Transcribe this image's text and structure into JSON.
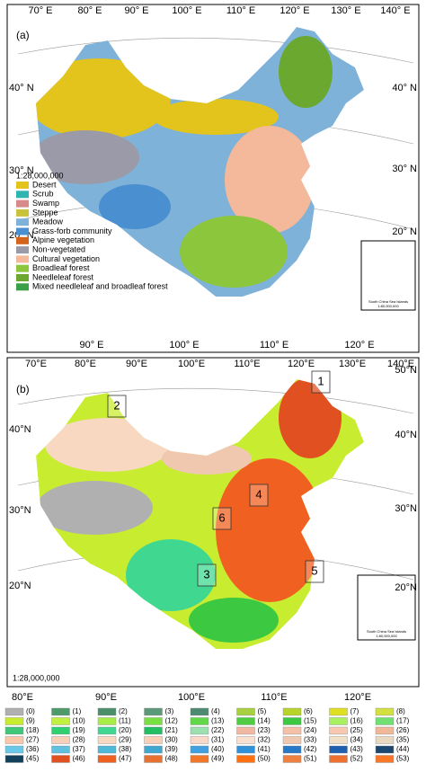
{
  "panel_a": {
    "label": "(a)",
    "top_ticks": [
      "70° E",
      "80° E",
      "90° E",
      "100° E",
      "110° E",
      "120° E",
      "130° E",
      "140° E"
    ],
    "left_ticks": [
      "40° N",
      "30° N",
      "20° N"
    ],
    "right_ticks": [
      "40° N",
      "30° N",
      "20° N"
    ],
    "bottom_ticks": [
      "90° E",
      "100° E",
      "110° E",
      "120° E"
    ],
    "scale": "1:28,000,000",
    "legend": [
      {
        "label": "Desert",
        "color": "#e2c41c"
      },
      {
        "label": "Scrub",
        "color": "#2fb4b0"
      },
      {
        "label": "Swamp",
        "color": "#d88a8a"
      },
      {
        "label": "Steppe",
        "color": "#c9c23a"
      },
      {
        "label": "Meadow",
        "color": "#7fb2d8"
      },
      {
        "label": "Grass-forb community",
        "color": "#4a90d0"
      },
      {
        "label": "Alpine vegetation",
        "color": "#d4641c"
      },
      {
        "label": "Non-vegetated",
        "color": "#9a9aa8"
      },
      {
        "label": "Cultural vegetation",
        "color": "#f4b89a"
      },
      {
        "label": "Broadleaf forest",
        "color": "#8cc63c"
      },
      {
        "label": "Needleleaf forest",
        "color": "#6aa830"
      },
      {
        "label": "Mixed needleleaf and broadleaf forest",
        "color": "#3aa04a"
      }
    ],
    "inset": {
      "title": "South China Sea Islands",
      "scale": "1:80,000,000"
    }
  },
  "panel_b": {
    "label": "(b)",
    "top_ticks": [
      "70°E",
      "80°E",
      "90°E",
      "100°E",
      "110°E",
      "120°E",
      "130°E",
      "140°E"
    ],
    "left_ticks": [
      "40°N",
      "30°N",
      "20°N"
    ],
    "right_ticks": [
      "50°N",
      "40°N",
      "30°N",
      "20°N"
    ],
    "bottom_ticks": [
      "80°E",
      "90°E",
      "100°E",
      "110°E",
      "120°E"
    ],
    "scale": "1:28,000,000",
    "regions": [
      "1",
      "2",
      "3",
      "4",
      "5",
      "6"
    ],
    "inset": {
      "title": "South China Sea Islands",
      "scale": "1:80,000,000"
    }
  },
  "classes": [
    {
      "label": "(0)",
      "color": "#b0b0b0"
    },
    {
      "label": "(1)",
      "color": "#4f9a6a"
    },
    {
      "label": "(2)",
      "color": "#4a8f6a"
    },
    {
      "label": "(3)",
      "color": "#5a9a78"
    },
    {
      "label": "(4)",
      "color": "#4d8a72"
    },
    {
      "label": "(5)",
      "color": "#a8d040"
    },
    {
      "label": "(6)",
      "color": "#b8d428"
    },
    {
      "label": "(7)",
      "color": "#e0e020"
    },
    {
      "label": "(8)",
      "color": "#d4e040"
    },
    {
      "label": "(9)",
      "color": "#c8ec30"
    },
    {
      "label": "(10)",
      "color": "#c0f040"
    },
    {
      "label": "(11)",
      "color": "#a8ec48"
    },
    {
      "label": "(12)",
      "color": "#78e040"
    },
    {
      "label": "(13)",
      "color": "#60d848"
    },
    {
      "label": "(14)",
      "color": "#50cc40"
    },
    {
      "label": "(15)",
      "color": "#3cc840"
    },
    {
      "label": "(16)",
      "color": "#a8f060"
    },
    {
      "label": "(17)",
      "color": "#70e070"
    },
    {
      "label": "(18)",
      "color": "#40c878"
    },
    {
      "label": "(19)",
      "color": "#30d070"
    },
    {
      "label": "(20)",
      "color": "#40d890"
    },
    {
      "label": "(21)",
      "color": "#20c060"
    },
    {
      "label": "(22)",
      "color": "#9ce0b0"
    },
    {
      "label": "(23)",
      "color": "#f0b8a0"
    },
    {
      "label": "(24)",
      "color": "#f5c0a8"
    },
    {
      "label": "(25)",
      "color": "#f8c8b0"
    },
    {
      "label": "(26)",
      "color": "#f0b898"
    },
    {
      "label": "(27)",
      "color": "#f8c8a8"
    },
    {
      "label": "(28)",
      "color": "#f6d0b8"
    },
    {
      "label": "(29)",
      "color": "#f8d8c0"
    },
    {
      "label": "(30)",
      "color": "#f8d0b8"
    },
    {
      "label": "(31)",
      "color": "#f8d8c8"
    },
    {
      "label": "(32)",
      "color": "#f8e0d0"
    },
    {
      "label": "(33)",
      "color": "#f0c8b0"
    },
    {
      "label": "(34)",
      "color": "#f0e0c8"
    },
    {
      "label": "(35)",
      "color": "#e8d8c0"
    },
    {
      "label": "(36)",
      "color": "#68c8e8"
    },
    {
      "label": "(37)",
      "color": "#60c0e0"
    },
    {
      "label": "(38)",
      "color": "#50b8d8"
    },
    {
      "label": "(39)",
      "color": "#40a8d0"
    },
    {
      "label": "(40)",
      "color": "#40a0e0"
    },
    {
      "label": "(41)",
      "color": "#3090d8"
    },
    {
      "label": "(42)",
      "color": "#2878c8"
    },
    {
      "label": "(43)",
      "color": "#2060b0"
    },
    {
      "label": "(44)",
      "color": "#1a4870"
    },
    {
      "label": "(45)",
      "color": "#10405a"
    },
    {
      "label": "(46)",
      "color": "#e05020"
    },
    {
      "label": "(47)",
      "color": "#f06020"
    },
    {
      "label": "(48)",
      "color": "#e87030"
    },
    {
      "label": "(49)",
      "color": "#f07828"
    },
    {
      "label": "(50)",
      "color": "#ff7010"
    },
    {
      "label": "(51)",
      "color": "#f08040"
    },
    {
      "label": "(52)",
      "color": "#f07030"
    },
    {
      "label": "(53)",
      "color": "#f87828"
    }
  ]
}
